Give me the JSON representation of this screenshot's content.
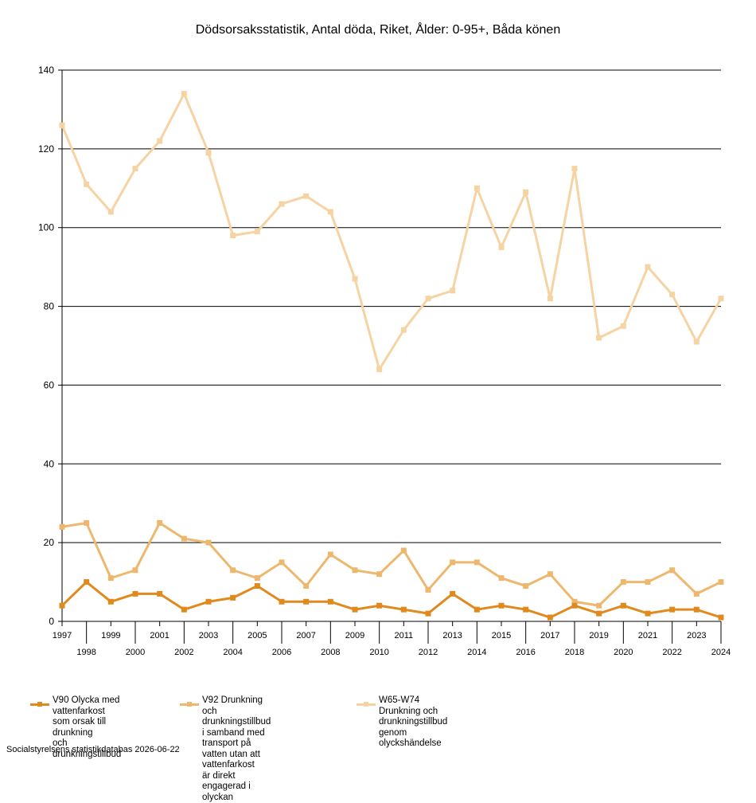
{
  "chart_data": {
    "type": "line",
    "title": "Dödsorsaksstatistik, Antal döda, Riket, Ålder: 0-95+, Båda könen",
    "xlabel": "",
    "ylabel": "",
    "ylim": [
      0,
      140
    ],
    "yticks": [
      0,
      20,
      40,
      60,
      80,
      100,
      120,
      140
    ],
    "grid": true,
    "legend_position": "bottom",
    "x": [
      "1997",
      "1998",
      "1999",
      "2000",
      "2001",
      "2002",
      "2003",
      "2004",
      "2005",
      "2006",
      "2007",
      "2008",
      "2009",
      "2010",
      "2011",
      "2012",
      "2013",
      "2014",
      "2015",
      "2016",
      "2017",
      "2018",
      "2019",
      "2020",
      "2021",
      "2022",
      "2023",
      "2024"
    ],
    "series": [
      {
        "name": "V90 Olycka med vattenfarkost\nsom orsak till drunkning\noch drunkningstillbud",
        "color": "#E08A1E",
        "values": [
          4,
          10,
          5,
          7,
          7,
          3,
          5,
          6,
          9,
          5,
          5,
          5,
          3,
          4,
          3,
          2,
          7,
          3,
          4,
          3,
          1,
          4,
          2,
          4,
          2,
          3,
          3,
          1
        ]
      },
      {
        "name": "V92 Drunkning och drunkningstillbud\ni samband med transport på\nvatten utan att vattenfarkost\när direkt engagerad i olyckan",
        "color": "#EDB86E",
        "values": [
          24,
          25,
          11,
          13,
          25,
          21,
          20,
          13,
          11,
          15,
          9,
          17,
          13,
          12,
          18,
          8,
          15,
          15,
          11,
          9,
          12,
          5,
          4,
          10,
          10,
          13,
          7,
          10
        ]
      },
      {
        "name": "W65-W74 Drunkning och drunkningstillbud\ngenom olyckshändelse",
        "color": "#F5D3A3",
        "values": [
          126,
          111,
          104,
          115,
          122,
          134,
          119,
          98,
          99,
          106,
          108,
          104,
          87,
          64,
          74,
          82,
          84,
          110,
          95,
          109,
          82,
          115,
          72,
          75,
          90,
          83,
          71,
          82
        ]
      }
    ]
  },
  "footer": "Socialstyrelsens statistikdatabas 2026-06-22"
}
